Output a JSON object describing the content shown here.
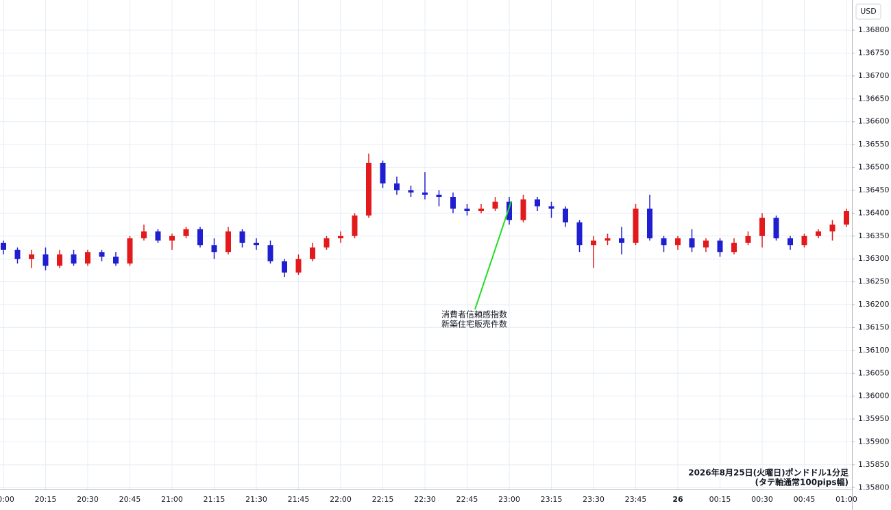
{
  "chart_data": {
    "type": "candlestick",
    "y_axis_label": "USD",
    "annotation": [
      "消費者信頼感指数",
      "新築住宅販売件数"
    ],
    "note": [
      "2026年8月25日(火曜日)ポンドドル1分足",
      "(タテ軸通常100pips幅)"
    ],
    "up_color": "#e31a1c",
    "down_color": "#1f1fd1",
    "grid": true,
    "categories": [
      "20:00",
      null,
      null,
      "20:15",
      null,
      null,
      "20:30",
      null,
      null,
      "20:45",
      null,
      null,
      "21:00",
      null,
      null,
      "21:15",
      null,
      null,
      "21:30",
      null,
      null,
      "21:45",
      null,
      null,
      "22:00",
      null,
      null,
      "22:15",
      null,
      null,
      "22:30",
      null,
      null,
      "22:45",
      null,
      null,
      "23:00",
      null,
      null,
      "23:15",
      null,
      null,
      "23:30",
      null,
      null,
      "23:45",
      null,
      null,
      "26",
      null,
      null,
      "00:15",
      null,
      null,
      "00:30",
      null,
      null,
      "00:45",
      null,
      null,
      "01:00"
    ],
    "open": [
      1.36335,
      1.3632,
      1.363,
      1.3631,
      1.36285,
      1.3631,
      1.3629,
      1.36315,
      1.36305,
      1.3629,
      1.36345,
      1.3636,
      1.3634,
      1.3635,
      1.36365,
      1.3633,
      1.36315,
      1.3636,
      1.36335,
      1.3633,
      1.36295,
      1.3627,
      1.363,
      1.36325,
      1.36345,
      1.3635,
      1.36395,
      1.3651,
      1.36465,
      1.3645,
      1.36445,
      1.3644,
      1.36435,
      1.3641,
      1.36405,
      1.3641,
      1.36425,
      1.36385,
      1.3643,
      1.36415,
      1.3641,
      1.3638,
      1.3633,
      1.3634,
      1.36345,
      1.36335,
      1.3641,
      1.36345,
      1.3633,
      1.36345,
      1.36325,
      1.3634,
      1.36315,
      1.36335,
      1.3635,
      1.3639,
      1.36345,
      1.3633,
      1.3635,
      1.3636,
      1.36375
    ],
    "high": [
      1.3634,
      1.36325,
      1.3632,
      1.36325,
      1.3632,
      1.3632,
      1.3632,
      1.3632,
      1.36315,
      1.3635,
      1.36375,
      1.36365,
      1.36355,
      1.3637,
      1.3637,
      1.36345,
      1.3637,
      1.36365,
      1.36345,
      1.3634,
      1.363,
      1.3631,
      1.36335,
      1.3635,
      1.3636,
      1.364,
      1.3653,
      1.36515,
      1.3648,
      1.3646,
      1.3649,
      1.3645,
      1.36445,
      1.3642,
      1.3642,
      1.36435,
      1.36435,
      1.3644,
      1.36435,
      1.36425,
      1.36415,
      1.36385,
      1.3635,
      1.36355,
      1.3637,
      1.3642,
      1.3644,
      1.3635,
      1.3635,
      1.36365,
      1.36345,
      1.36345,
      1.36345,
      1.3636,
      1.364,
      1.36395,
      1.3635,
      1.36355,
      1.36365,
      1.36385,
      1.3641
    ],
    "low": [
      1.3631,
      1.3629,
      1.3628,
      1.36275,
      1.3628,
      1.36285,
      1.36285,
      1.36295,
      1.36285,
      1.36285,
      1.3634,
      1.36335,
      1.3632,
      1.36345,
      1.36325,
      1.363,
      1.3631,
      1.36325,
      1.3632,
      1.3629,
      1.3626,
      1.36265,
      1.36295,
      1.3632,
      1.36335,
      1.36345,
      1.3639,
      1.36455,
      1.3644,
      1.36435,
      1.3643,
      1.36415,
      1.364,
      1.36395,
      1.364,
      1.36405,
      1.36375,
      1.3638,
      1.36405,
      1.3639,
      1.3637,
      1.36315,
      1.3628,
      1.3633,
      1.3631,
      1.3633,
      1.3634,
      1.36315,
      1.3632,
      1.36315,
      1.36315,
      1.36305,
      1.3631,
      1.3633,
      1.36325,
      1.3634,
      1.3632,
      1.36325,
      1.36345,
      1.3634,
      1.3637
    ],
    "close": [
      1.3632,
      1.363,
      1.3631,
      1.36285,
      1.3631,
      1.3629,
      1.36315,
      1.36305,
      1.3629,
      1.36345,
      1.3636,
      1.3634,
      1.3635,
      1.36365,
      1.3633,
      1.36315,
      1.3636,
      1.36335,
      1.3633,
      1.36295,
      1.3627,
      1.363,
      1.36325,
      1.36345,
      1.3635,
      1.36395,
      1.3651,
      1.36465,
      1.3645,
      1.36445,
      1.3644,
      1.36435,
      1.3641,
      1.36405,
      1.3641,
      1.36425,
      1.36385,
      1.3643,
      1.36415,
      1.3641,
      1.3638,
      1.3633,
      1.3634,
      1.36345,
      1.36335,
      1.3641,
      1.36345,
      1.3633,
      1.36345,
      1.36325,
      1.3634,
      1.36315,
      1.36335,
      1.3635,
      1.3639,
      1.36345,
      1.3633,
      1.3635,
      1.3636,
      1.36375,
      1.36405
    ],
    "ylim": [
      1.35796,
      1.36866
    ],
    "yticks": [
      {
        "value": 1.368,
        "label": "1.36800"
      },
      {
        "value": 1.3675,
        "label": "1.36750"
      },
      {
        "value": 1.367,
        "label": "1.36700"
      },
      {
        "value": 1.3665,
        "label": "1.36650"
      },
      {
        "value": 1.366,
        "label": "1.36600"
      },
      {
        "value": 1.3655,
        "label": "1.36550"
      },
      {
        "value": 1.365,
        "label": "1.36500"
      },
      {
        "value": 1.3645,
        "label": "1.36450"
      },
      {
        "value": 1.364,
        "label": "1.36400"
      },
      {
        "value": 1.3635,
        "label": "1.36350"
      },
      {
        "value": 1.363,
        "label": "1.36300"
      },
      {
        "value": 1.3625,
        "label": "1.36250"
      },
      {
        "value": 1.362,
        "label": "1.36200"
      },
      {
        "value": 1.3615,
        "label": "1.36150"
      },
      {
        "value": 1.361,
        "label": "1.36100"
      },
      {
        "value": 1.3605,
        "label": "1.36050"
      },
      {
        "value": 1.36,
        "label": "1.36000"
      },
      {
        "value": 1.3595,
        "label": "1.35950"
      },
      {
        "value": 1.359,
        "label": "1.35900"
      },
      {
        "value": 1.3585,
        "label": "1.35850"
      },
      {
        "value": 1.358,
        "label": "1.35800"
      }
    ]
  }
}
